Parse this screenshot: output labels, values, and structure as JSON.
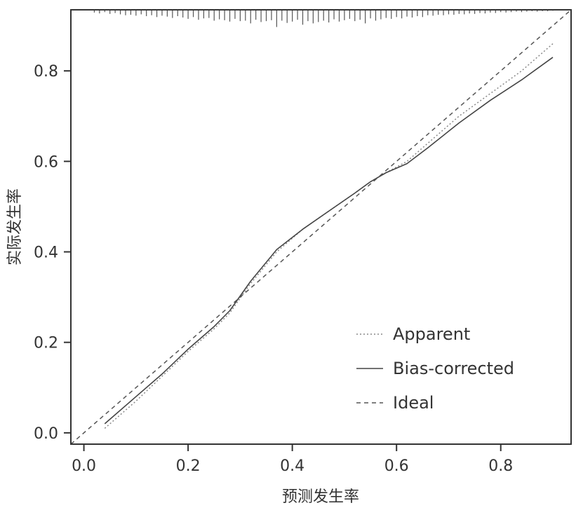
{
  "chart_data": {
    "type": "line",
    "xlabel": "预测发生率",
    "ylabel": "实际发生率",
    "xlim": [
      -0.025,
      0.935
    ],
    "ylim": [
      -0.025,
      0.935
    ],
    "xticks": [
      0.0,
      0.2,
      0.4,
      0.6,
      0.8
    ],
    "yticks": [
      0.0,
      0.2,
      0.4,
      0.6,
      0.8
    ],
    "xtick_labels": [
      "0.0",
      "0.2",
      "0.4",
      "0.6",
      "0.8"
    ],
    "ytick_labels": [
      "0.0",
      "0.2",
      "0.4",
      "0.6",
      "0.8"
    ],
    "grid": false,
    "legend_position": "bottom-right",
    "series": [
      {
        "name": "Apparent",
        "style": "dotted",
        "color": "#888888",
        "x": [
          0.04,
          0.1,
          0.15,
          0.2,
          0.25,
          0.28,
          0.32,
          0.37,
          0.42,
          0.47,
          0.52,
          0.55,
          0.58,
          0.62,
          0.66,
          0.72,
          0.78,
          0.84,
          0.9
        ],
        "y": [
          0.01,
          0.07,
          0.125,
          0.18,
          0.23,
          0.265,
          0.33,
          0.4,
          0.45,
          0.49,
          0.53,
          0.555,
          0.575,
          0.6,
          0.64,
          0.7,
          0.75,
          0.8,
          0.86
        ]
      },
      {
        "name": "Bias-corrected",
        "style": "solid",
        "color": "#444444",
        "x": [
          0.04,
          0.1,
          0.15,
          0.2,
          0.25,
          0.28,
          0.32,
          0.37,
          0.42,
          0.47,
          0.52,
          0.55,
          0.58,
          0.62,
          0.66,
          0.72,
          0.78,
          0.84,
          0.9
        ],
        "y": [
          0.02,
          0.08,
          0.13,
          0.185,
          0.235,
          0.27,
          0.335,
          0.405,
          0.45,
          0.49,
          0.53,
          0.555,
          0.575,
          0.595,
          0.63,
          0.685,
          0.735,
          0.78,
          0.83
        ]
      },
      {
        "name": "Ideal",
        "style": "dashed",
        "color": "#555555",
        "x": [
          -0.025,
          0.935
        ],
        "y": [
          -0.025,
          0.935
        ]
      }
    ],
    "rug": {
      "x": [
        0.02,
        0.03,
        0.04,
        0.05,
        0.06,
        0.07,
        0.08,
        0.09,
        0.1,
        0.11,
        0.12,
        0.13,
        0.14,
        0.15,
        0.16,
        0.17,
        0.18,
        0.19,
        0.2,
        0.21,
        0.22,
        0.23,
        0.24,
        0.25,
        0.26,
        0.27,
        0.28,
        0.29,
        0.3,
        0.31,
        0.32,
        0.33,
        0.34,
        0.35,
        0.36,
        0.37,
        0.38,
        0.39,
        0.4,
        0.41,
        0.42,
        0.43,
        0.44,
        0.45,
        0.46,
        0.47,
        0.48,
        0.49,
        0.5,
        0.51,
        0.52,
        0.53,
        0.54,
        0.55,
        0.56,
        0.57,
        0.58,
        0.59,
        0.6,
        0.61,
        0.62,
        0.63,
        0.64,
        0.65,
        0.66,
        0.67,
        0.68,
        0.69,
        0.7,
        0.71,
        0.72,
        0.73,
        0.74,
        0.75,
        0.76,
        0.77,
        0.78,
        0.79,
        0.8,
        0.81,
        0.82,
        0.83,
        0.84,
        0.85,
        0.86,
        0.87,
        0.88,
        0.89,
        0.9
      ],
      "height": [
        0.006,
        0.008,
        0.005,
        0.009,
        0.007,
        0.01,
        0.012,
        0.011,
        0.013,
        0.01,
        0.014,
        0.012,
        0.016,
        0.013,
        0.015,
        0.018,
        0.014,
        0.017,
        0.02,
        0.016,
        0.022,
        0.019,
        0.018,
        0.024,
        0.021,
        0.023,
        0.026,
        0.02,
        0.025,
        0.024,
        0.03,
        0.022,
        0.027,
        0.025,
        0.023,
        0.038,
        0.024,
        0.029,
        0.026,
        0.022,
        0.033,
        0.025,
        0.03,
        0.027,
        0.024,
        0.028,
        0.021,
        0.026,
        0.023,
        0.02,
        0.025,
        0.022,
        0.03,
        0.019,
        0.024,
        0.021,
        0.018,
        0.02,
        0.016,
        0.019,
        0.015,
        0.017,
        0.014,
        0.016,
        0.012,
        0.013,
        0.011,
        0.012,
        0.01,
        0.011,
        0.009,
        0.01,
        0.008,
        0.009,
        0.007,
        0.008,
        0.006,
        0.007,
        0.005,
        0.006,
        0.005,
        0.004,
        0.005,
        0.004,
        0.003,
        0.004,
        0.003,
        0.003,
        0.002
      ]
    }
  }
}
